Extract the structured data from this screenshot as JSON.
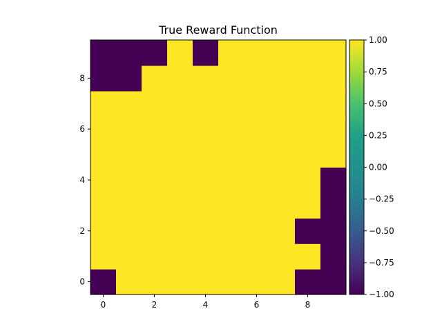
{
  "chart_data": {
    "type": "heatmap",
    "title": "True Reward Function",
    "xlabel": "",
    "ylabel": "",
    "origin": "lower",
    "x_ticks": [
      0,
      2,
      4,
      6,
      8
    ],
    "y_ticks": [
      0,
      2,
      4,
      6,
      8
    ],
    "xlim": [
      -0.5,
      9.5
    ],
    "ylim": [
      -0.5,
      9.5
    ],
    "colormap": "viridis",
    "color_low": "#440154",
    "color_high": "#fde725",
    "vmin": -1.0,
    "vmax": 1.0,
    "colorbar_ticks": [
      "1.00",
      "0.75",
      "0.50",
      "0.25",
      "0.00",
      "−0.25",
      "−0.50",
      "−0.75",
      "−1.00"
    ],
    "colorbar_tick_values": [
      1.0,
      0.75,
      0.5,
      0.25,
      0.0,
      -0.25,
      -0.5,
      -0.75,
      -1.0
    ],
    "grid": false,
    "z": [
      [
        -1,
        1,
        1,
        1,
        1,
        1,
        1,
        1,
        -1,
        -1
      ],
      [
        1,
        1,
        1,
        1,
        1,
        1,
        1,
        1,
        1,
        -1
      ],
      [
        1,
        1,
        1,
        1,
        1,
        1,
        1,
        1,
        -1,
        -1
      ],
      [
        1,
        1,
        1,
        1,
        1,
        1,
        1,
        1,
        1,
        -1
      ],
      [
        1,
        1,
        1,
        1,
        1,
        1,
        1,
        1,
        1,
        -1
      ],
      [
        1,
        1,
        1,
        1,
        1,
        1,
        1,
        1,
        1,
        1
      ],
      [
        1,
        1,
        1,
        1,
        1,
        1,
        1,
        1,
        1,
        1
      ],
      [
        1,
        1,
        1,
        1,
        1,
        1,
        1,
        1,
        1,
        1
      ],
      [
        -1,
        -1,
        1,
        1,
        1,
        1,
        1,
        1,
        1,
        1
      ],
      [
        -1,
        -1,
        -1,
        1,
        -1,
        1,
        1,
        1,
        1,
        1
      ]
    ]
  }
}
